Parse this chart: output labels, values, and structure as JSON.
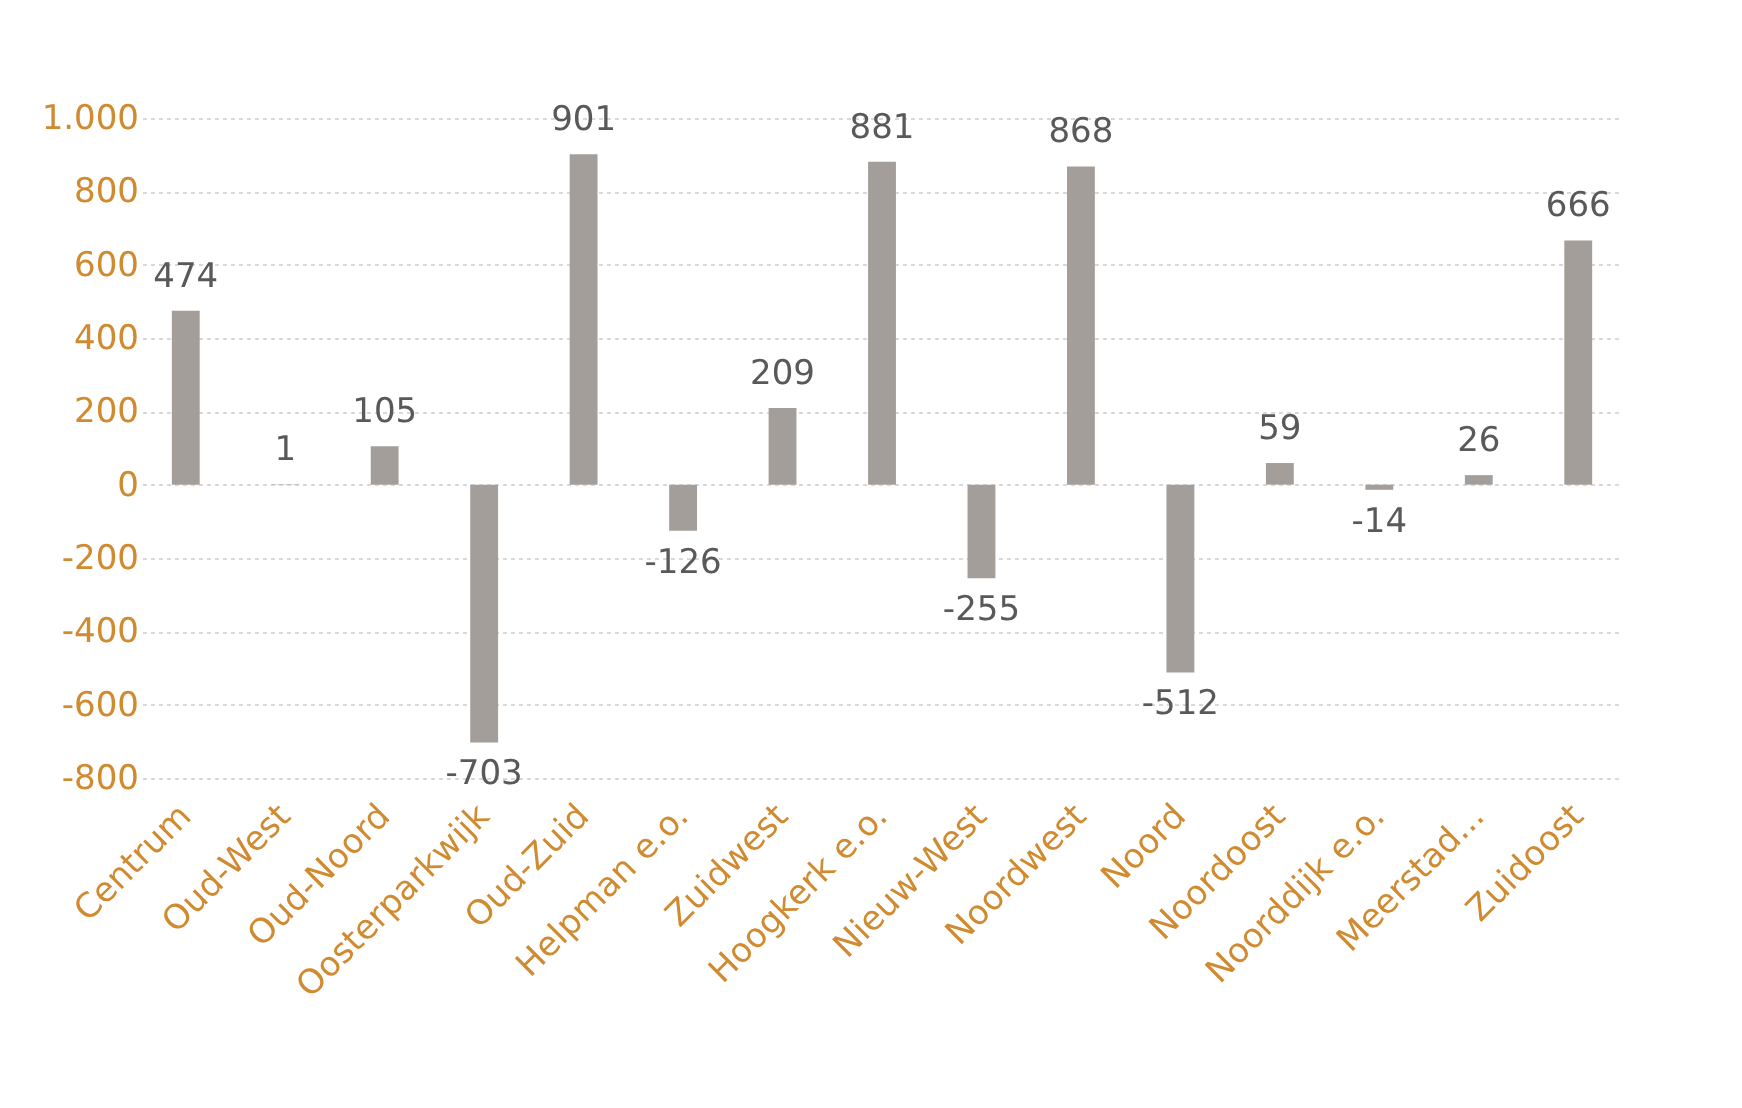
{
  "chart_data": {
    "type": "bar",
    "categories": [
      "Centrum",
      "Oud-West",
      "Oud-Noord",
      "Oosterparkwijk",
      "Oud-Zuid",
      "Helpman e.o.",
      "Zuidwest",
      "Hoogkerk e.o.",
      "Nieuw-West",
      "Noordwest",
      "Noord",
      "Noordoost",
      "Noorddijk e.o.",
      "Meerstad...",
      "Zuidoost"
    ],
    "values": [
      474,
      1,
      105,
      -703,
      901,
      -126,
      209,
      881,
      -255,
      868,
      -512,
      59,
      -14,
      26,
      666
    ],
    "color": "#a39e99",
    "ylim": [
      -800,
      1000
    ],
    "yticks": [
      -800,
      -600,
      -400,
      -200,
      0,
      200,
      400,
      600,
      800,
      {
        "value": 1000,
        "label": "1.000"
      }
    ],
    "grid": "y",
    "data_labels": true
  }
}
